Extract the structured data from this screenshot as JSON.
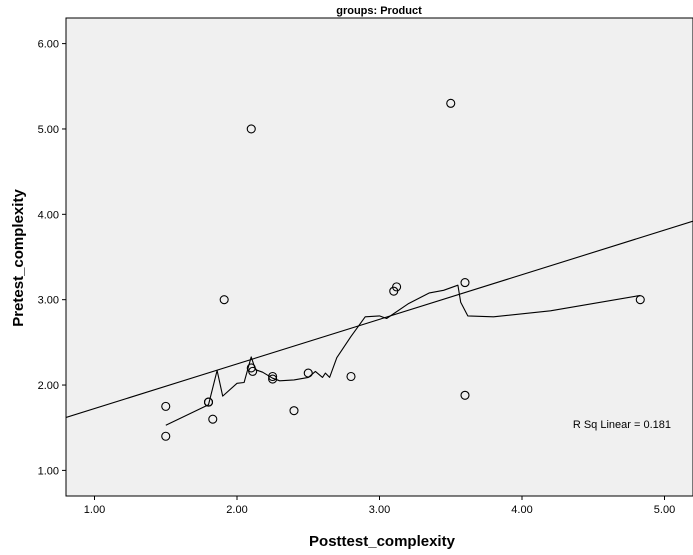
{
  "chart_data": {
    "type": "scatter",
    "title": "groups: Product",
    "xlabel": "Posttest_complexity",
    "ylabel": "Pretest_complexity",
    "xlim": [
      0.8,
      5.2
    ],
    "ylim": [
      0.7,
      6.3
    ],
    "xticks": [
      "1.00",
      "2.00",
      "3.00",
      "4.00",
      "5.00"
    ],
    "yticks": [
      "1.00",
      "2.00",
      "3.00",
      "4.00",
      "5.00",
      "6.00"
    ],
    "points": [
      {
        "x": 1.5,
        "y": 1.75
      },
      {
        "x": 1.5,
        "y": 1.4
      },
      {
        "x": 1.8,
        "y": 1.8
      },
      {
        "x": 1.8,
        "y": 1.8
      },
      {
        "x": 1.83,
        "y": 1.6
      },
      {
        "x": 1.91,
        "y": 3.0
      },
      {
        "x": 2.1,
        "y": 5.0
      },
      {
        "x": 2.1,
        "y": 2.2
      },
      {
        "x": 2.11,
        "y": 2.16
      },
      {
        "x": 2.25,
        "y": 2.1
      },
      {
        "x": 2.25,
        "y": 2.07
      },
      {
        "x": 2.4,
        "y": 1.7
      },
      {
        "x": 2.5,
        "y": 2.14
      },
      {
        "x": 2.8,
        "y": 2.1
      },
      {
        "x": 3.1,
        "y": 3.1
      },
      {
        "x": 3.12,
        "y": 3.15
      },
      {
        "x": 3.5,
        "y": 5.3
      },
      {
        "x": 3.6,
        "y": 3.2
      },
      {
        "x": 3.6,
        "y": 1.88
      },
      {
        "x": 4.83,
        "y": 3.0
      }
    ],
    "fit_line": {
      "x": [
        0.8,
        5.2
      ],
      "y": [
        1.62,
        3.92
      ]
    },
    "loess_curve": {
      "x": [
        1.5,
        1.8,
        1.86,
        1.9,
        2.0,
        2.05,
        2.1,
        2.13,
        2.18,
        2.25,
        2.3,
        2.4,
        2.5,
        2.55,
        2.6,
        2.62,
        2.65,
        2.7,
        2.8,
        2.9,
        3.0,
        3.05,
        3.2,
        3.35,
        3.45,
        3.55,
        3.57,
        3.62,
        3.8,
        4.2,
        4.83
      ],
      "y": [
        1.53,
        1.77,
        2.17,
        1.87,
        2.02,
        2.03,
        2.33,
        2.18,
        2.15,
        2.08,
        2.05,
        2.06,
        2.09,
        2.16,
        2.09,
        2.14,
        2.09,
        2.32,
        2.57,
        2.8,
        2.81,
        2.78,
        2.95,
        3.08,
        3.11,
        3.17,
        2.97,
        2.81,
        2.8,
        2.87,
        3.05
      ]
    },
    "annotations": [
      "R Sq Linear = 0.181"
    ],
    "grid": false,
    "legend": "none",
    "background": "#f0f0f0",
    "marker_color": "#000000",
    "line_color": "#000000"
  }
}
